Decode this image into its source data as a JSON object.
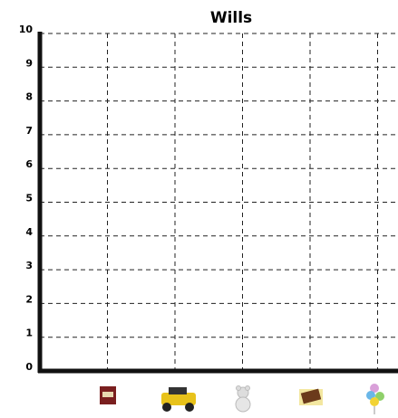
{
  "chart_data": {
    "type": "bar",
    "title": "Wills",
    "categories": [
      null,
      null,
      null,
      null,
      null
    ],
    "values": [
      0,
      0,
      0,
      0,
      0
    ],
    "color": "#4472c4",
    "ylim": [
      0,
      10
    ],
    "yticks": [
      0,
      1,
      2,
      3,
      4,
      5,
      6,
      7,
      8,
      9,
      10
    ],
    "grid": true
  }
}
